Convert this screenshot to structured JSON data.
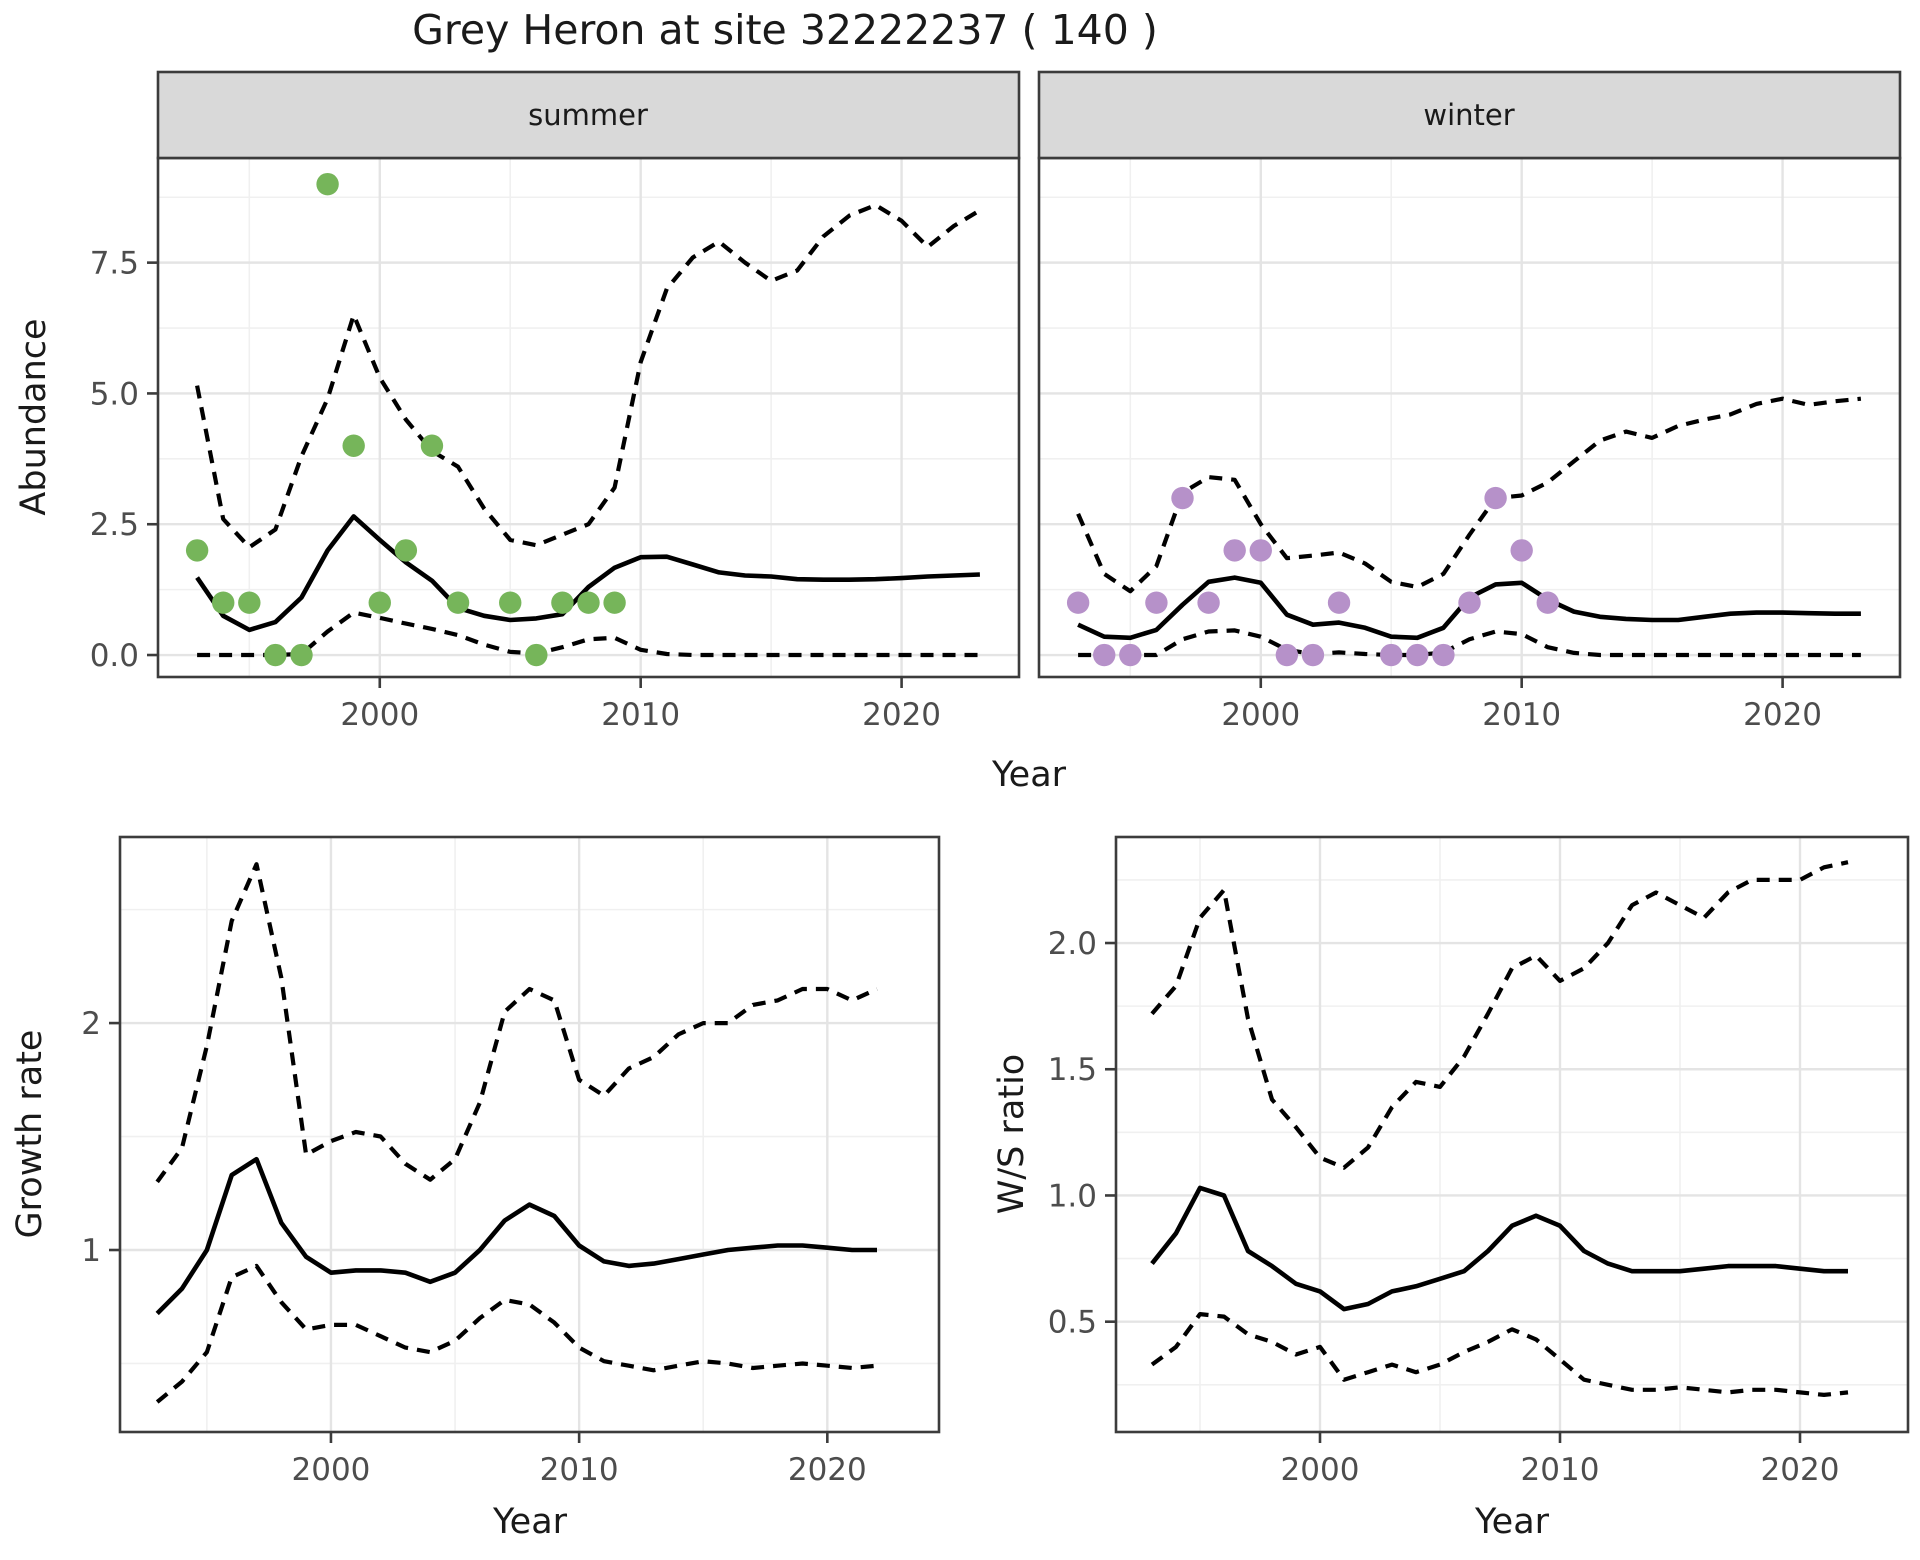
{
  "title": "Grey Heron at site 32222237 ( 140 )",
  "colors": {
    "summer_point": "#76B55A",
    "winter_point": "#B691C9",
    "line": "#000000",
    "grid_major": "#E4E4E4",
    "grid_minor": "#F0F0F0",
    "panel_border": "#3C3C3C",
    "strip_bg": "#D9D9D9",
    "tick_text": "#4D4D4D",
    "strip_text": "#1A1A1A"
  },
  "chart_data": [
    {
      "type": "line",
      "id": "abundance-summer",
      "facet_label": "summer",
      "ylabel": "Abundance",
      "xlabel": "Year",
      "x_range": [
        1991.5,
        2024.5
      ],
      "y_range": [
        -0.42,
        9.5
      ],
      "x_breaks": [
        2000,
        2010,
        2020
      ],
      "x_tick_labels": [
        "2000",
        "2010",
        "2020"
      ],
      "x_minor": [
        1995,
        2005,
        2015
      ],
      "y_breaks": [
        0,
        2.5,
        5,
        7.5
      ],
      "y_tick_labels": [
        "0.0",
        "2.5",
        "5.0",
        "7.5"
      ],
      "y_minor": [
        1.25,
        3.75,
        6.25,
        8.75
      ],
      "points": {
        "name": "summer observations",
        "color": "#76B55A",
        "years": [
          1993,
          1994,
          1995,
          1996,
          1997,
          1998,
          1999,
          2000,
          2001,
          2002,
          2003,
          2005,
          2006,
          2007,
          2008,
          2009
        ],
        "values": [
          2,
          1,
          1,
          0,
          0,
          9,
          4,
          1,
          2,
          4,
          1,
          1,
          0,
          1,
          1,
          1
        ]
      },
      "x": [
        1993,
        1994,
        1995,
        1996,
        1997,
        1998,
        1999,
        2000,
        2001,
        2002,
        2003,
        2004,
        2005,
        2006,
        2007,
        2008,
        2009,
        2010,
        2011,
        2012,
        2013,
        2014,
        2015,
        2016,
        2017,
        2018,
        2019,
        2020,
        2021,
        2022,
        2023
      ],
      "series": [
        {
          "name": "median",
          "style": "solid",
          "values": [
            1.48,
            0.75,
            0.48,
            0.63,
            1.1,
            2.0,
            2.65,
            2.2,
            1.77,
            1.42,
            0.9,
            0.75,
            0.67,
            0.7,
            0.78,
            1.3,
            1.67,
            1.87,
            1.88,
            1.73,
            1.58,
            1.52,
            1.5,
            1.45,
            1.44,
            1.44,
            1.45,
            1.47,
            1.5,
            1.52,
            1.54
          ]
        },
        {
          "name": "upper95",
          "style": "dashed",
          "values": [
            5.15,
            2.6,
            2.06,
            2.4,
            3.8,
            4.9,
            6.5,
            5.3,
            4.5,
            3.9,
            3.6,
            2.8,
            2.2,
            2.1,
            2.3,
            2.5,
            3.2,
            5.6,
            7.0,
            7.6,
            7.9,
            7.5,
            7.15,
            7.35,
            8.0,
            8.4,
            8.6,
            8.3,
            7.8,
            8.2,
            8.5
          ]
        },
        {
          "name": "lower95",
          "style": "dashed",
          "values": [
            0,
            0,
            0,
            0,
            0.02,
            0.45,
            0.81,
            0.71,
            0.6,
            0.5,
            0.38,
            0.2,
            0.06,
            0.03,
            0.15,
            0.3,
            0.33,
            0.1,
            0.02,
            0,
            0,
            0,
            0,
            0,
            0,
            0,
            0,
            0,
            0,
            0,
            0
          ]
        }
      ]
    },
    {
      "type": "line",
      "id": "abundance-winter",
      "facet_label": "winter",
      "ylabel": "Abundance",
      "xlabel": "Year",
      "x_range": [
        1991.5,
        2024.5
      ],
      "y_range": [
        -0.42,
        9.5
      ],
      "x_breaks": [
        2000,
        2010,
        2020
      ],
      "x_tick_labels": [
        "2000",
        "2010",
        "2020"
      ],
      "x_minor": [
        1995,
        2005,
        2015
      ],
      "y_breaks": [
        0,
        2.5,
        5,
        7.5
      ],
      "y_tick_labels": [
        "0.0",
        "2.5",
        "5.0",
        "7.5"
      ],
      "y_minor": [
        1.25,
        3.75,
        6.25,
        8.75
      ],
      "points": {
        "name": "winter observations",
        "color": "#B691C9",
        "years": [
          1993,
          1994,
          1995,
          1996,
          1997,
          1998,
          1999,
          2000,
          2001,
          2002,
          2003,
          2005,
          2006,
          2007,
          2008,
          2009,
          2010,
          2011
        ],
        "values": [
          1,
          0,
          0,
          1,
          3,
          1,
          2,
          2,
          0,
          0,
          1,
          0,
          0,
          0,
          1,
          3,
          2,
          1
        ]
      },
      "x": [
        1993,
        1994,
        1995,
        1996,
        1997,
        1998,
        1999,
        2000,
        2001,
        2002,
        2003,
        2004,
        2005,
        2006,
        2007,
        2008,
        2009,
        2010,
        2011,
        2012,
        2013,
        2014,
        2015,
        2016,
        2017,
        2018,
        2019,
        2020,
        2021,
        2022,
        2023
      ],
      "series": [
        {
          "name": "median",
          "style": "solid",
          "values": [
            0.58,
            0.35,
            0.33,
            0.48,
            0.96,
            1.4,
            1.48,
            1.38,
            0.77,
            0.58,
            0.62,
            0.52,
            0.35,
            0.33,
            0.52,
            1.1,
            1.35,
            1.38,
            1.06,
            0.83,
            0.73,
            0.69,
            0.67,
            0.67,
            0.73,
            0.79,
            0.81,
            0.81,
            0.8,
            0.79,
            0.79
          ]
        },
        {
          "name": "upper95",
          "style": "dashed",
          "values": [
            2.7,
            1.55,
            1.22,
            1.7,
            3.1,
            3.4,
            3.35,
            2.5,
            1.85,
            1.9,
            1.96,
            1.75,
            1.4,
            1.3,
            1.55,
            2.3,
            3.0,
            3.05,
            3.3,
            3.7,
            4.1,
            4.27,
            4.15,
            4.38,
            4.5,
            4.6,
            4.8,
            4.9,
            4.78,
            4.85,
            4.9
          ]
        },
        {
          "name": "lower95",
          "style": "dashed",
          "values": [
            0,
            0,
            0,
            0,
            0.3,
            0.45,
            0.47,
            0.35,
            0.1,
            0.02,
            0.05,
            0.02,
            0,
            0,
            0.05,
            0.3,
            0.45,
            0.4,
            0.15,
            0.04,
            0,
            0,
            0,
            0,
            0,
            0,
            0,
            0,
            0,
            0,
            0
          ]
        }
      ]
    },
    {
      "type": "line",
      "id": "growth-rate",
      "facet_label": "",
      "ylabel": "Growth rate",
      "xlabel": "Year",
      "x_range": [
        1991.5,
        2024.5
      ],
      "y_range": [
        0.198,
        2.82
      ],
      "x_breaks": [
        2000,
        2010,
        2020
      ],
      "x_tick_labels": [
        "2000",
        "2010",
        "2020"
      ],
      "x_minor": [
        1995,
        2005,
        2015
      ],
      "y_breaks": [
        1,
        2
      ],
      "y_tick_labels": [
        "1",
        "2"
      ],
      "y_minor": [
        0.5,
        1.5,
        2.5
      ],
      "points": null,
      "x": [
        1993,
        1994,
        1995,
        1996,
        1997,
        1998,
        1999,
        2000,
        2001,
        2002,
        2003,
        2004,
        2005,
        2006,
        2007,
        2008,
        2009,
        2010,
        2011,
        2012,
        2013,
        2014,
        2015,
        2016,
        2017,
        2018,
        2019,
        2020,
        2021,
        2022
      ],
      "series": [
        {
          "name": "median",
          "style": "solid",
          "values": [
            0.72,
            0.83,
            1.0,
            1.33,
            1.4,
            1.12,
            0.97,
            0.9,
            0.91,
            0.91,
            0.9,
            0.86,
            0.9,
            1.0,
            1.13,
            1.2,
            1.15,
            1.02,
            0.95,
            0.93,
            0.94,
            0.96,
            0.98,
            1.0,
            1.01,
            1.02,
            1.02,
            1.01,
            1.0,
            1.0
          ]
        },
        {
          "name": "upper95",
          "style": "dashed",
          "values": [
            1.3,
            1.45,
            1.9,
            2.45,
            2.7,
            2.2,
            1.42,
            1.48,
            1.52,
            1.5,
            1.38,
            1.31,
            1.4,
            1.65,
            2.05,
            2.15,
            2.1,
            1.75,
            1.68,
            1.8,
            1.85,
            1.95,
            2.0,
            2.0,
            2.08,
            2.1,
            2.15,
            2.15,
            2.1,
            2.15
          ]
        },
        {
          "name": "lower95",
          "style": "dashed",
          "values": [
            0.33,
            0.42,
            0.55,
            0.88,
            0.93,
            0.77,
            0.65,
            0.67,
            0.67,
            0.62,
            0.57,
            0.55,
            0.6,
            0.7,
            0.78,
            0.76,
            0.68,
            0.57,
            0.51,
            0.49,
            0.47,
            0.49,
            0.51,
            0.5,
            0.48,
            0.49,
            0.5,
            0.49,
            0.48,
            0.49
          ]
        }
      ]
    },
    {
      "type": "line",
      "id": "ws-ratio",
      "facet_label": "",
      "ylabel": "W/S ratio",
      "xlabel": "Year",
      "x_range": [
        1991.5,
        2024.5
      ],
      "y_range": [
        0.063,
        2.42
      ],
      "x_breaks": [
        2000,
        2010,
        2020
      ],
      "x_tick_labels": [
        "2000",
        "2010",
        "2020"
      ],
      "x_minor": [
        1995,
        2005,
        2015
      ],
      "y_breaks": [
        0.5,
        1.0,
        1.5,
        2.0
      ],
      "y_tick_labels": [
        "0.5",
        "1.0",
        "1.5",
        "2.0"
      ],
      "y_minor": [
        0.25,
        0.75,
        1.25,
        1.75,
        2.25
      ],
      "points": null,
      "x": [
        1993,
        1994,
        1995,
        1996,
        1997,
        1998,
        1999,
        2000,
        2001,
        2002,
        2003,
        2004,
        2005,
        2006,
        2007,
        2008,
        2009,
        2010,
        2011,
        2012,
        2013,
        2014,
        2015,
        2016,
        2017,
        2018,
        2019,
        2020,
        2021,
        2022
      ],
      "series": [
        {
          "name": "median",
          "style": "solid",
          "values": [
            0.73,
            0.85,
            1.03,
            1.0,
            0.78,
            0.72,
            0.65,
            0.62,
            0.55,
            0.57,
            0.62,
            0.64,
            0.67,
            0.7,
            0.78,
            0.88,
            0.92,
            0.88,
            0.78,
            0.73,
            0.7,
            0.7,
            0.7,
            0.71,
            0.72,
            0.72,
            0.72,
            0.71,
            0.7,
            0.7
          ]
        },
        {
          "name": "upper95",
          "style": "dashed",
          "values": [
            1.72,
            1.83,
            2.1,
            2.21,
            1.7,
            1.38,
            1.27,
            1.15,
            1.11,
            1.19,
            1.35,
            1.45,
            1.43,
            1.55,
            1.72,
            1.9,
            1.95,
            1.85,
            1.9,
            2.0,
            2.15,
            2.2,
            2.15,
            2.1,
            2.2,
            2.25,
            2.25,
            2.25,
            2.3,
            2.32
          ]
        },
        {
          "name": "lower95",
          "style": "dashed",
          "values": [
            0.33,
            0.4,
            0.53,
            0.52,
            0.45,
            0.42,
            0.37,
            0.4,
            0.27,
            0.3,
            0.33,
            0.3,
            0.33,
            0.38,
            0.42,
            0.47,
            0.43,
            0.35,
            0.27,
            0.25,
            0.23,
            0.23,
            0.24,
            0.23,
            0.22,
            0.23,
            0.23,
            0.22,
            0.21,
            0.22
          ]
        }
      ]
    }
  ]
}
